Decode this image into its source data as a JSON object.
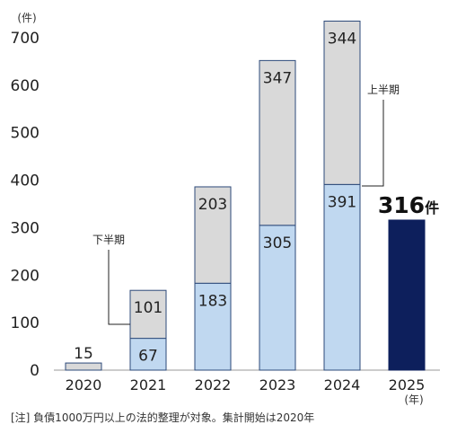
{
  "chart_data": {
    "type": "bar",
    "stacked": true,
    "y_unit_label": "(件)",
    "x_unit_label": "(年)",
    "ylim": [
      0,
      700
    ],
    "yticks": [
      0,
      100,
      200,
      300,
      400,
      500,
      600,
      700
    ],
    "categories": [
      "2020",
      "2021",
      "2022",
      "2023",
      "2024",
      "2025"
    ],
    "series": [
      {
        "name": "上半期",
        "values": [
          null,
          67,
          183,
          305,
          391,
          316
        ],
        "color": "#c0d8f0"
      },
      {
        "name": "下半期",
        "values": [
          15,
          101,
          203,
          347,
          344,
          null
        ],
        "color": "#d9d9d9"
      }
    ],
    "highlight": {
      "category": "2025",
      "value": "316",
      "unit": "件",
      "color": "#0d1f5c"
    },
    "annotations": [
      {
        "text": "上半期",
        "target_category": "2024"
      },
      {
        "text": "下半期",
        "target_category": "2021"
      }
    ],
    "grid": false,
    "legend": "none"
  },
  "footnote": "[注] 負債1000万円以上の法的整理が対象。集計開始は2020年"
}
